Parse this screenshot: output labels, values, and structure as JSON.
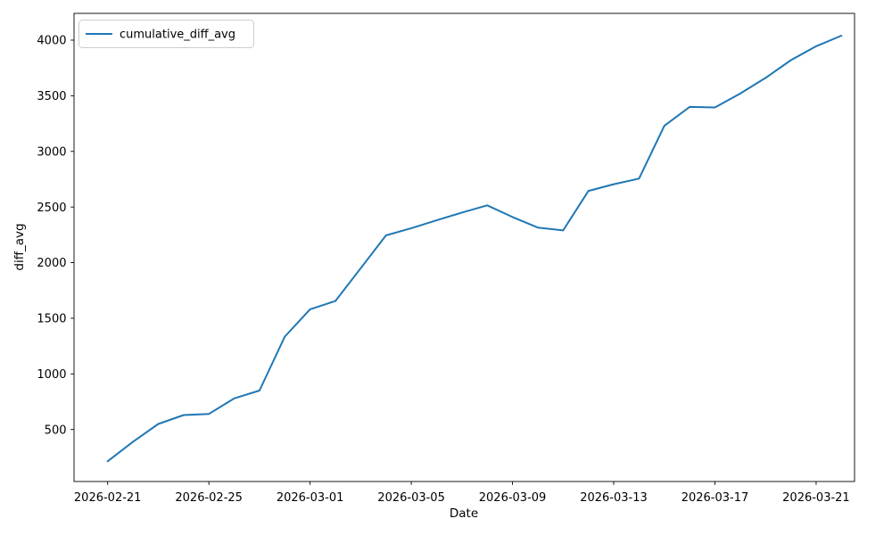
{
  "figure": {
    "xlabel": "Date",
    "ylabel": "diff_avg",
    "legend": {
      "label": "cumulative_diff_avg"
    }
  },
  "chart_data": {
    "type": "line",
    "title": "",
    "xlabel": "Date",
    "ylabel": "diff_avg",
    "grid": false,
    "legend_position": "upper left",
    "background_color": "#ffffff",
    "axis_color": "#000000",
    "x_tick_labels": [
      "2026-02-21",
      "2026-02-25",
      "2026-03-01",
      "2026-03-05",
      "2026-03-09",
      "2026-03-13",
      "2026-03-17",
      "2026-03-21"
    ],
    "y_tick_labels": [
      500,
      1000,
      1500,
      2000,
      2500,
      3000,
      3500,
      4000
    ],
    "ylim": [
      30,
      4240
    ],
    "series": [
      {
        "name": "cumulative_diff_avg",
        "color": "#1f77b4",
        "x": [
          "2026-02-21",
          "2026-02-22",
          "2026-02-23",
          "2026-02-24",
          "2026-02-25",
          "2026-02-26",
          "2026-02-27",
          "2026-02-28",
          "2026-03-01",
          "2026-03-02",
          "2026-03-03",
          "2026-03-04",
          "2026-03-05",
          "2026-03-06",
          "2026-03-07",
          "2026-03-08",
          "2026-03-09",
          "2026-03-10",
          "2026-03-11",
          "2026-03-12",
          "2026-03-13",
          "2026-03-14",
          "2026-03-15",
          "2026-03-16",
          "2026-03-17",
          "2026-03-18",
          "2026-03-19",
          "2026-03-20",
          "2026-03-21",
          "2026-03-22"
        ],
        "values": [
          215,
          390,
          550,
          630,
          640,
          780,
          850,
          1335,
          1580,
          1655,
          1950,
          2245,
          2310,
          2380,
          2450,
          2515,
          2410,
          2315,
          2290,
          2645,
          2705,
          2755,
          3230,
          3400,
          3395,
          3520,
          3660,
          3820,
          3945,
          4040
        ]
      }
    ]
  }
}
